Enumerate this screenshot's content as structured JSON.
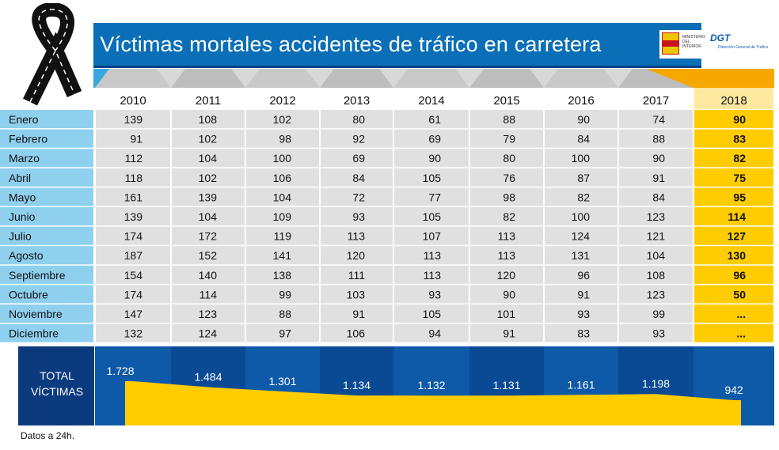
{
  "title": "Víctimas mortales accidentes de tráfico en carretera",
  "logos": {
    "ministerio": "MINISTERIO DEL INTERIOR",
    "dgt": "DGT",
    "dgt_sub": "Dirección General de Tráfico"
  },
  "footnote": "Datos a 24h.",
  "colors": {
    "title_blue": "#0a6fb7",
    "month_blue": "#8fd0ef",
    "highlight_yellow": "#ffcc00",
    "total_navy": "#0b3a7e",
    "cell_gray": "#e0e0e0"
  },
  "chart_data": {
    "type": "table",
    "title": "Víctimas mortales accidentes de tráfico en carretera",
    "years": [
      "2010",
      "2011",
      "2012",
      "2013",
      "2014",
      "2015",
      "2016",
      "2017",
      "2018"
    ],
    "months": [
      "Enero",
      "Febrero",
      "Marzo",
      "Abril",
      "Mayo",
      "Junio",
      "Julio",
      "Agosto",
      "Septiembre",
      "Octubre",
      "Noviembre",
      "Diciembre"
    ],
    "rows": [
      [
        "139",
        "108",
        "102",
        "80",
        "61",
        "88",
        "90",
        "74",
        "90"
      ],
      [
        "91",
        "102",
        "98",
        "92",
        "69",
        "79",
        "84",
        "88",
        "83"
      ],
      [
        "112",
        "104",
        "100",
        "69",
        "90",
        "80",
        "100",
        "90",
        "82"
      ],
      [
        "118",
        "102",
        "106",
        "84",
        "105",
        "76",
        "87",
        "91",
        "75"
      ],
      [
        "161",
        "139",
        "104",
        "72",
        "77",
        "98",
        "82",
        "84",
        "95"
      ],
      [
        "139",
        "104",
        "109",
        "93",
        "105",
        "82",
        "100",
        "123",
        "114"
      ],
      [
        "174",
        "172",
        "119",
        "113",
        "107",
        "113",
        "124",
        "121",
        "127"
      ],
      [
        "187",
        "152",
        "141",
        "120",
        "113",
        "113",
        "131",
        "104",
        "130"
      ],
      [
        "154",
        "140",
        "138",
        "111",
        "113",
        "120",
        "96",
        "108",
        "96"
      ],
      [
        "174",
        "114",
        "99",
        "103",
        "93",
        "90",
        "91",
        "123",
        "50"
      ],
      [
        "147",
        "123",
        "88",
        "91",
        "105",
        "101",
        "93",
        "99",
        "..."
      ],
      [
        "132",
        "124",
        "97",
        "106",
        "94",
        "91",
        "83",
        "93",
        "..."
      ]
    ],
    "total_label_line1": "TOTAL",
    "total_label_line2": "VÍCTIMAS",
    "totals_display": [
      "1.728",
      "1.484",
      "1.301",
      "1.134",
      "1.132",
      "1.131",
      "1.161",
      "1.198",
      "942"
    ],
    "totals": [
      1728,
      1484,
      1301,
      1134,
      1132,
      1131,
      1161,
      1198,
      942
    ],
    "highlight_year": "2018"
  }
}
